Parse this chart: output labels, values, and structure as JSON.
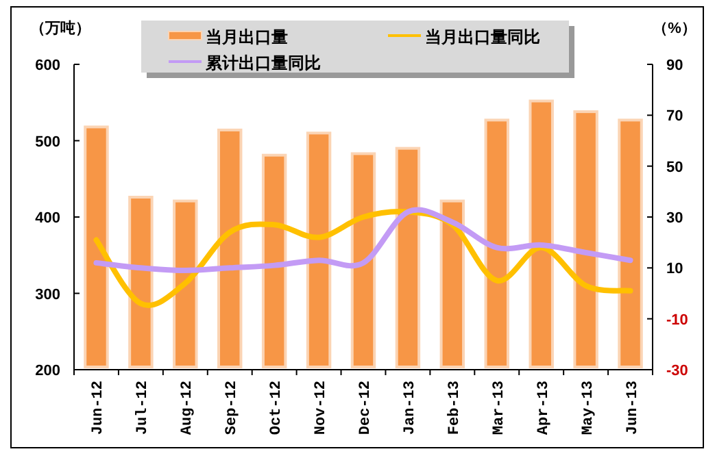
{
  "chart_data": {
    "type": "bar",
    "ylabel": "（万吨）",
    "y2label": "（%）",
    "categories": [
      "Jun-12",
      "Jul-12",
      "Aug-12",
      "Sep-12",
      "Oct-12",
      "Nov-12",
      "Dec-12",
      "Jan-13",
      "Feb-13",
      "Mar-13",
      "Apr-13",
      "May-13",
      "Jun-13"
    ],
    "series": [
      {
        "name": "当月出口量",
        "color": "#f79646",
        "values": [
          518,
          426,
          421,
          514,
          481,
          510,
          483,
          490,
          421,
          527,
          552,
          538,
          527
        ]
      },
      {
        "name": "当月出口量同比",
        "type": "line",
        "axis": "y2",
        "color": "#ffc000",
        "values": [
          21,
          -4,
          4,
          24,
          27,
          22,
          30,
          32,
          27,
          5,
          18,
          3,
          1
        ]
      },
      {
        "name": "累计出口量同比",
        "type": "line",
        "axis": "y2",
        "color": "#c39bf5",
        "values": [
          12,
          10,
          9,
          10,
          11,
          13,
          12,
          32,
          28,
          18,
          19,
          16,
          13
        ]
      }
    ],
    "ylim": [
      200,
      600
    ],
    "yticks": [
      200,
      300,
      400,
      500,
      600
    ],
    "y2lim": [
      -30,
      90
    ],
    "y2ticks": [
      -30,
      -10,
      10,
      30,
      50,
      70,
      90
    ],
    "legend": "top",
    "grid": false
  }
}
